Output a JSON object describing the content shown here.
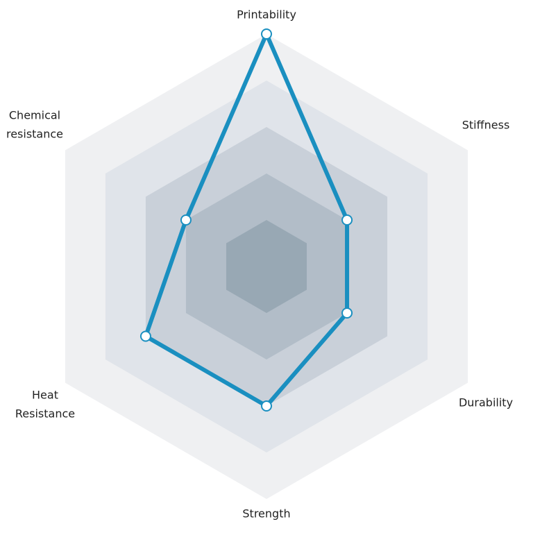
{
  "chart_data": {
    "type": "radar",
    "categories": [
      [
        "Printability"
      ],
      [
        "Stiffness"
      ],
      [
        "Durability"
      ],
      [
        "Strength"
      ],
      [
        "Heat",
        "Resistance"
      ],
      [
        "Chemical",
        "resistance"
      ]
    ],
    "values": [
      5,
      2,
      2,
      3,
      3,
      2
    ],
    "color": "#1a8fc0",
    "ylim": [
      0,
      5
    ],
    "yticks": [
      1,
      2,
      3,
      4,
      5
    ],
    "ring_colors": [
      "#98a8b4",
      "#b2bdc8",
      "#c9d0d9",
      "#e0e4ea",
      "#eff0f2"
    ]
  }
}
